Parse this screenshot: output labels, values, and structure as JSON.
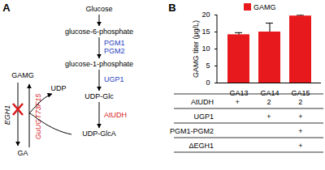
{
  "panel_labels": [
    "A",
    "B"
  ],
  "diagram": {
    "nodes": {
      "glucose": "Glucose",
      "g6p": "glucose-6-phosphate",
      "g1p": "glucose-1-phosphate",
      "udpglc": "UDP-Glc",
      "udpglca": "UDP-GlcA",
      "udp": "UDP",
      "gamg": "GAMG",
      "ga": "GA"
    },
    "enzymes": {
      "pgm": [
        {
          "label": "PGM1",
          "color": "#2a3fbf"
        },
        {
          "label": "PGM2",
          "color": "#2a3fbf"
        }
      ],
      "ugp": {
        "label": "UGP1",
        "color": "#2a3fbf"
      },
      "udh": {
        "label": "AtUDH",
        "color": "#d7191c"
      },
      "ugt": {
        "label": "GuUGT73F15",
        "color": "#d7191c"
      },
      "egh": {
        "label": "EGH1",
        "color": "#000000"
      }
    },
    "knockout_color": "#d7191c"
  },
  "chart_data": {
    "type": "bar",
    "categories": [
      "GA13",
      "GA14",
      "GA15"
    ],
    "series": [
      {
        "name": "GAMG",
        "color": "#e8191c",
        "values": [
          14.2,
          15.0,
          19.7
        ],
        "errors": [
          0.6,
          2.6,
          0.2
        ]
      }
    ],
    "ylabel": "GAMG titer (μg/L)",
    "ylim": [
      0,
      20
    ],
    "yticks": [
      0,
      5,
      10,
      15,
      20
    ],
    "legend": "top",
    "table": {
      "rows": [
        {
          "label": "AtUDH",
          "cells": [
            "+",
            "2",
            "2"
          ]
        },
        {
          "label": "UGP1",
          "cells": [
            null,
            "+",
            "+"
          ]
        },
        {
          "label": "PGM1-PGM2",
          "cells": [
            null,
            null,
            "+"
          ]
        },
        {
          "label": "ΔEGH1",
          "cells": [
            null,
            null,
            "+"
          ]
        }
      ]
    }
  }
}
